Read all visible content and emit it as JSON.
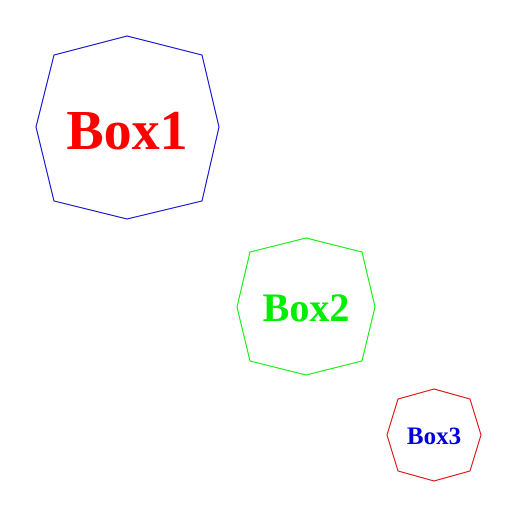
{
  "diagram": {
    "nodes": [
      {
        "id": "box1",
        "label": "Box1",
        "shape": "octagon",
        "stroke_color": "#0000cc",
        "text_color": "#ff0000"
      },
      {
        "id": "box2",
        "label": "Box2",
        "shape": "octagon",
        "stroke_color": "#00ee00",
        "text_color": "#00ee00"
      },
      {
        "id": "box3",
        "label": "Box3",
        "shape": "octagon",
        "stroke_color": "#dd0000",
        "text_color": "#0000dd"
      }
    ]
  }
}
